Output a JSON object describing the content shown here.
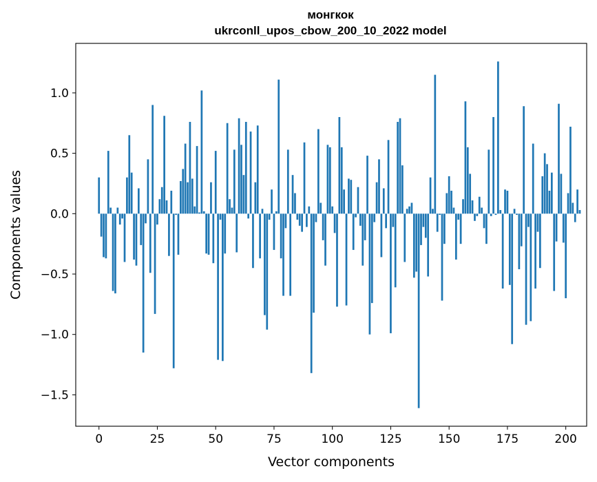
{
  "chart_data": {
    "type": "bar",
    "title_line1": "монгкок",
    "title_line2": "ukrconll_upos_cbow_200_10_2022 model",
    "xlabel": "Vector components",
    "ylabel": "Components values",
    "xlim": [
      -9.95,
      208.95
    ],
    "ylim": [
      -1.76,
      1.41
    ],
    "xticks": [
      0,
      25,
      50,
      75,
      100,
      125,
      150,
      175,
      200
    ],
    "xtick_labels": [
      "0",
      "25",
      "50",
      "75",
      "100",
      "125",
      "150",
      "175",
      "200"
    ],
    "yticks": [
      -1.5,
      -1.0,
      -0.5,
      0.0,
      0.5,
      1.0
    ],
    "ytick_labels": [
      "−1.5",
      "−1.0",
      "−0.5",
      "0.0",
      "0.5",
      "1.0"
    ],
    "grid": false,
    "bar_color": "#1f77b4",
    "bar_width": 0.8,
    "values": [
      0.3,
      -0.19,
      -0.36,
      -0.37,
      0.52,
      0.05,
      -0.64,
      -0.66,
      0.05,
      -0.09,
      -0.04,
      -0.4,
      0.3,
      0.65,
      0.34,
      -0.38,
      -0.43,
      0.21,
      -0.26,
      -1.15,
      -0.08,
      0.45,
      -0.49,
      0.9,
      -0.83,
      -0.09,
      0.12,
      0.22,
      0.81,
      0.11,
      -0.35,
      0.19,
      -1.28,
      -0.01,
      -0.34,
      0.27,
      0.37,
      0.58,
      0.26,
      0.76,
      0.29,
      0.06,
      0.56,
      0.01,
      1.02,
      0.02,
      -0.33,
      -0.34,
      0.26,
      -0.41,
      0.52,
      -1.21,
      -0.05,
      -1.22,
      -0.33,
      0.75,
      0.12,
      0.05,
      0.53,
      -0.32,
      0.79,
      0.57,
      0.32,
      0.76,
      -0.04,
      0.68,
      -0.45,
      0.26,
      0.73,
      -0.37,
      0.04,
      -0.84,
      -0.96,
      -0.05,
      0.2,
      -0.3,
      0.02,
      1.11,
      -0.37,
      -0.68,
      -0.12,
      0.53,
      -0.68,
      0.32,
      0.17,
      -0.05,
      -0.1,
      -0.15,
      0.59,
      -0.11,
      0.06,
      -1.32,
      -0.82,
      -0.07,
      0.7,
      0.09,
      -0.22,
      -0.43,
      0.57,
      0.55,
      0.06,
      -0.16,
      -0.77,
      0.8,
      0.55,
      0.2,
      -0.76,
      0.29,
      0.28,
      -0.3,
      -0.03,
      0.22,
      -0.1,
      -0.43,
      -0.22,
      0.48,
      -1.0,
      -0.74,
      -0.07,
      0.26,
      0.45,
      -0.36,
      0.21,
      -0.12,
      0.61,
      -0.99,
      -0.11,
      -0.61,
      0.76,
      0.79,
      0.4,
      -0.4,
      0.04,
      0.06,
      0.09,
      -0.53,
      -0.48,
      -1.61,
      -0.26,
      -0.11,
      -0.2,
      -0.52,
      0.3,
      0.04,
      1.15,
      -0.15,
      -0.01,
      -0.72,
      -0.25,
      0.17,
      0.31,
      0.19,
      0.05,
      -0.38,
      -0.05,
      -0.25,
      0.12,
      0.93,
      0.55,
      0.33,
      0.11,
      -0.06,
      -0.02,
      0.14,
      0.05,
      -0.12,
      -0.25,
      0.53,
      -0.02,
      0.8,
      -0.01,
      1.26,
      0.03,
      -0.62,
      0.2,
      0.19,
      -0.59,
      -1.08,
      0.04,
      -0.01,
      -0.46,
      -0.27,
      0.89,
      -0.92,
      -0.11,
      -0.89,
      0.58,
      -0.62,
      -0.15,
      -0.45,
      0.31,
      0.5,
      0.41,
      0.19,
      0.34,
      -0.64,
      -0.23,
      0.91,
      0.33,
      -0.24,
      -0.7,
      0.17,
      0.72,
      0.09,
      -0.07,
      0.2,
      0.03
    ]
  }
}
